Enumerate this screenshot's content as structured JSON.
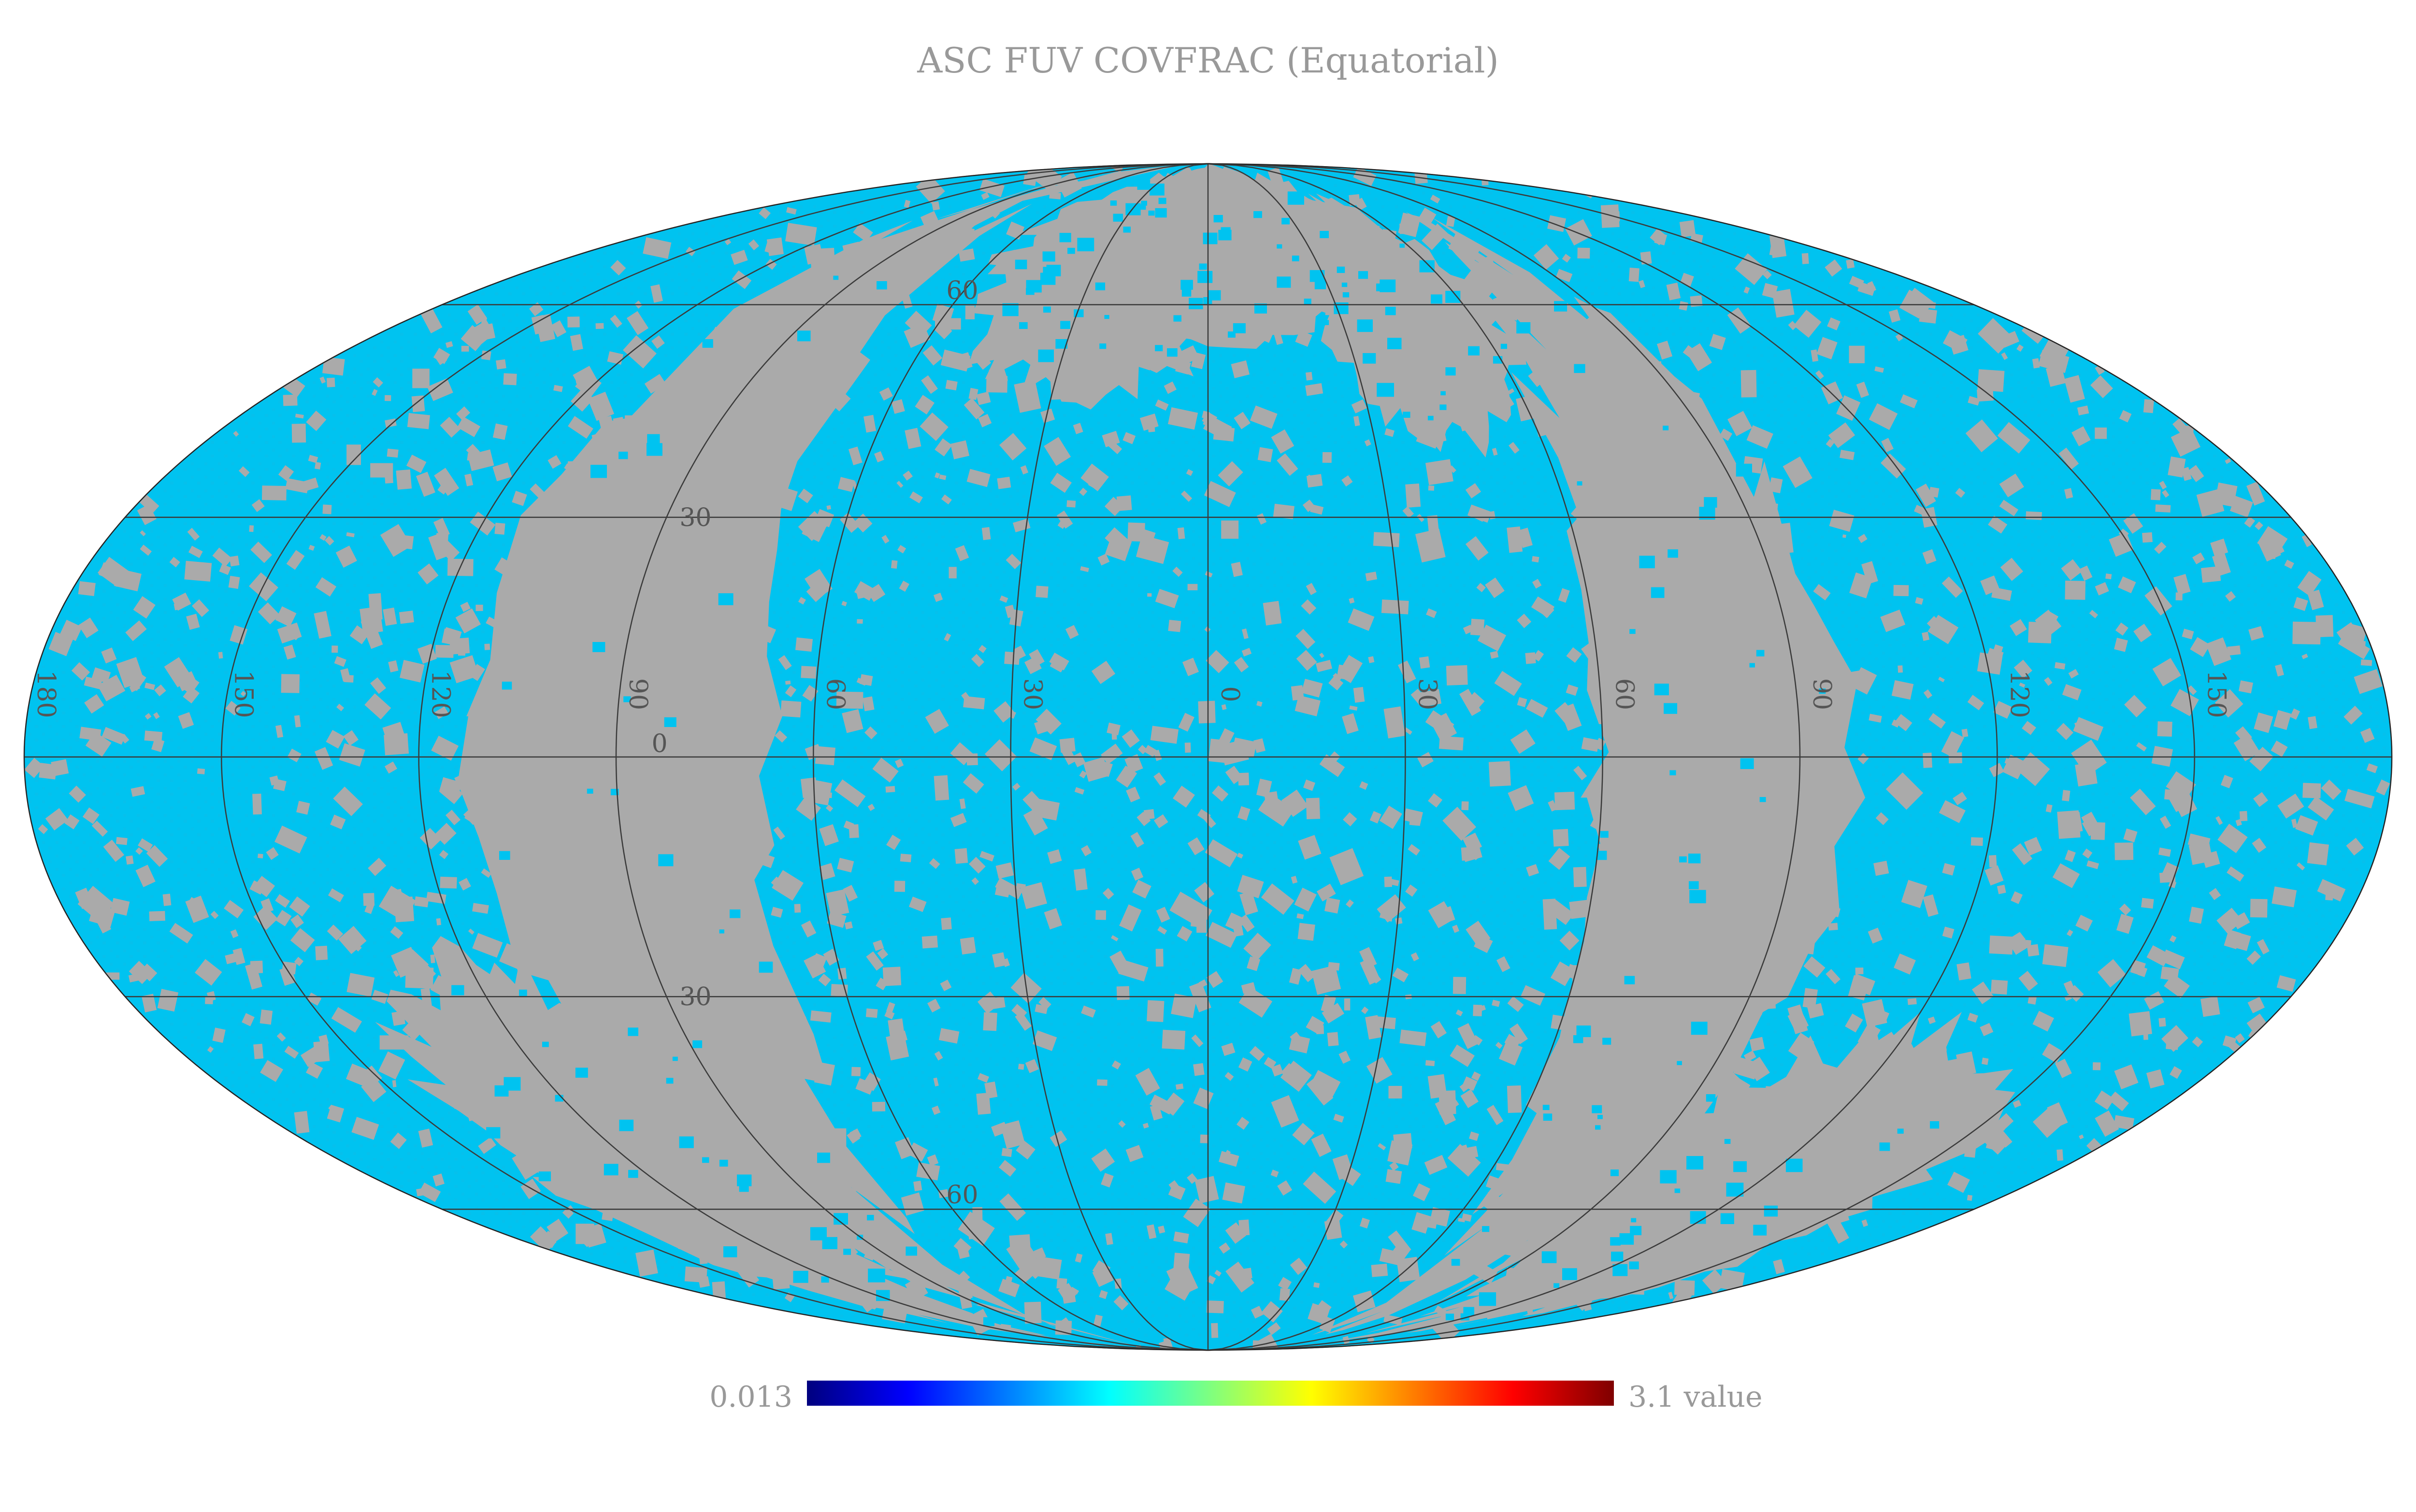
{
  "title": "ASC FUV COVFRAC (Equatorial)",
  "colors": {
    "background": "#ffffff",
    "no_data": "#aaaaaa",
    "coverage": "#00c3f0",
    "graticule": "#3a3a3a",
    "title_text": "#999999",
    "label_text": "#555555",
    "colorbar_text": "#999999"
  },
  "graticule": {
    "meridian_labels": [
      {
        "lon": 180,
        "text": "180"
      },
      {
        "lon": 150,
        "text": "150"
      },
      {
        "lon": 120,
        "text": "120"
      },
      {
        "lon": 90,
        "text": "90"
      },
      {
        "lon": 60,
        "text": "60"
      },
      {
        "lon": 30,
        "text": "30"
      },
      {
        "lon": 0,
        "text": "0"
      },
      {
        "lon": -30,
        "text": "30"
      },
      {
        "lon": -60,
        "text": "60"
      },
      {
        "lon": -90,
        "text": "90"
      },
      {
        "lon": -120,
        "text": "120"
      },
      {
        "lon": -150,
        "text": "150"
      }
    ],
    "parallel_labels": [
      {
        "lat": 60,
        "text": "60"
      },
      {
        "lat": 30,
        "text": "30"
      },
      {
        "lat": 0,
        "text": "0"
      },
      {
        "lat": -30,
        "text": "30"
      },
      {
        "lat": -60,
        "text": "60"
      }
    ]
  },
  "colorbar": {
    "min_label": "0.013",
    "max_label": "3.1 value",
    "colormap": [
      "#00007f",
      "#0000ff",
      "#007fff",
      "#00ffff",
      "#7fff7f",
      "#ffff00",
      "#ff7f00",
      "#ff0000",
      "#7f0000"
    ]
  },
  "coverage": {
    "description_free_note": "",
    "gaps": [
      {
        "lon": 90,
        "lat": 5,
        "lon_half": 22,
        "lat_half": 85
      },
      {
        "lon": -78,
        "lat": -5,
        "lon_half": 20,
        "lat_half": 75
      },
      {
        "lon": 0,
        "lat": 72,
        "lon_half": 55,
        "lat_half": 18
      },
      {
        "lon": -45,
        "lat": 60,
        "lon_half": 20,
        "lat_half": 20
      },
      {
        "lon": 25,
        "lat": 65,
        "lon_half": 30,
        "lat_half": 18
      },
      {
        "lon": 120,
        "lat": -55,
        "lon_half": 25,
        "lat_half": 30
      },
      {
        "lon": -120,
        "lat": -60,
        "lon_half": 35,
        "lat_half": 25
      }
    ]
  }
}
